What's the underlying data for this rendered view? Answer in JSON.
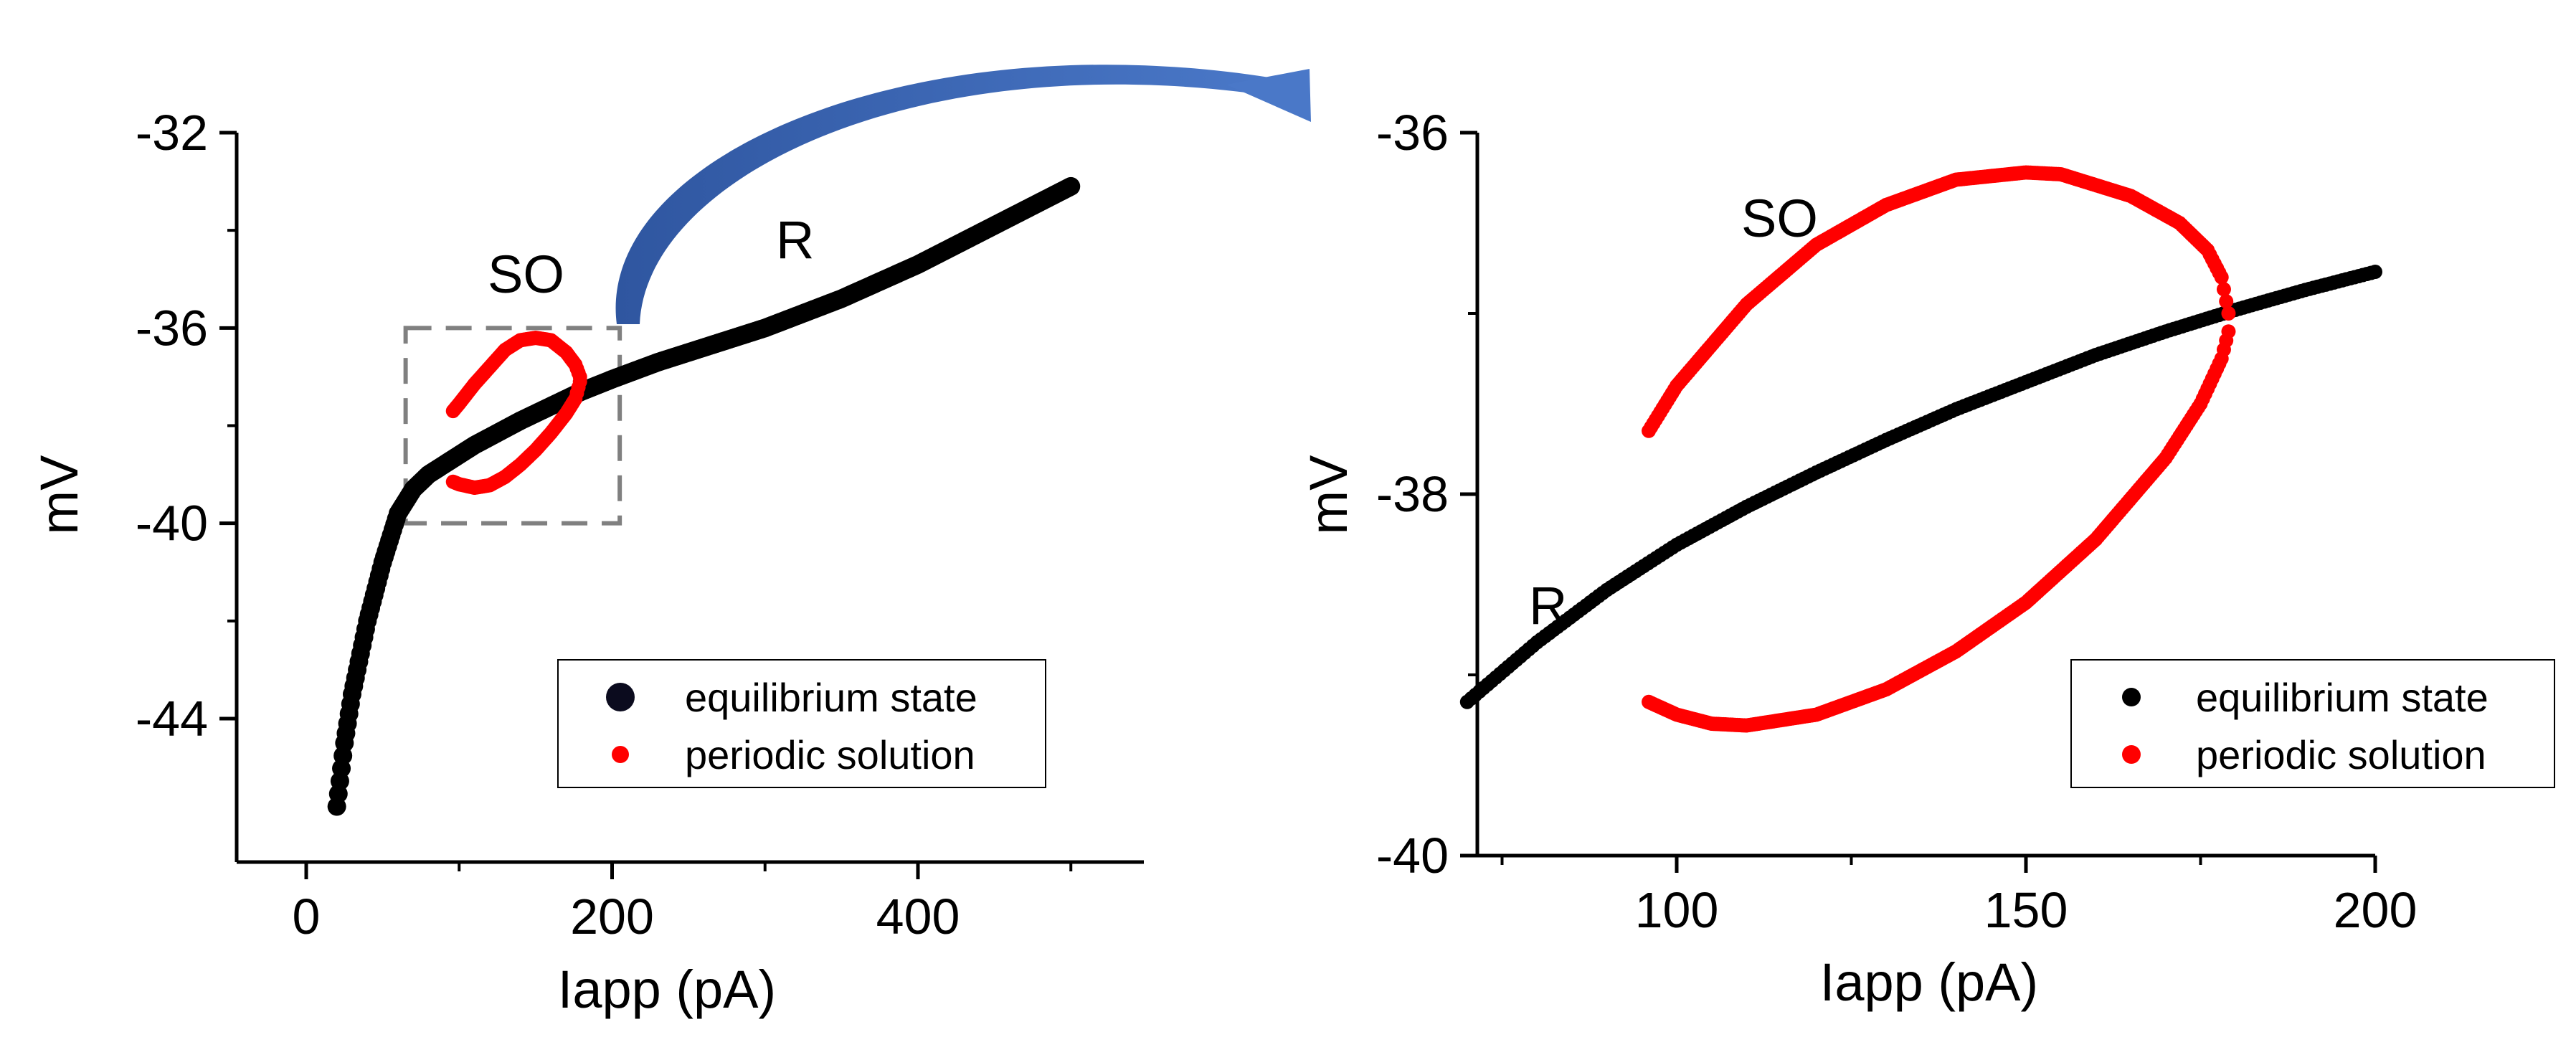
{
  "chart_data": [
    {
      "type": "scatter",
      "title": "",
      "xlabel": "Iapp (pA)",
      "ylabel": "mV",
      "xlim": [
        -45,
        550
      ],
      "ylim": [
        -47,
        -32
      ],
      "xticks": [
        0,
        200,
        400
      ],
      "yticks": [
        -32,
        -36,
        -40,
        -44
      ],
      "xtick_labels": [
        "0",
        "200",
        "400"
      ],
      "ytick_labels": [
        "-32",
        "-36",
        "-40",
        "-44"
      ],
      "grid": false,
      "legend_position": "bottom-right",
      "annotations": [
        "SO",
        "R"
      ],
      "inset_box": {
        "xlim": [
          65,
          205
        ],
        "ylim": [
          -40,
          -36
        ]
      },
      "series": [
        {
          "name": "equilibrium state",
          "color": "#000000",
          "x": [
            20,
            25,
            30,
            40,
            50,
            60,
            70,
            80,
            90,
            100,
            110,
            125,
            140,
            160,
            180,
            200,
            230,
            260,
            300,
            350,
            400,
            450,
            500
          ],
          "y": [
            -45.8,
            -44.5,
            -43.5,
            -42.0,
            -40.8,
            -39.8,
            -39.3,
            -39.0,
            -38.8,
            -38.6,
            -38.4,
            -38.15,
            -37.9,
            -37.6,
            -37.3,
            -37.05,
            -36.7,
            -36.4,
            -36.0,
            -35.4,
            -34.7,
            -33.9,
            -33.1
          ]
        },
        {
          "name": "periodic solution",
          "color": "#ff0000",
          "x": [
            96,
            100,
            110,
            120,
            130,
            140,
            150,
            160,
            170,
            176,
            179,
            179,
            176,
            170,
            160,
            150,
            140,
            130,
            120,
            110,
            100,
            96
          ],
          "y": [
            -39.15,
            -39.2,
            -39.27,
            -39.22,
            -39.05,
            -38.8,
            -38.5,
            -38.15,
            -37.75,
            -37.45,
            -37.1,
            -37.0,
            -36.75,
            -36.5,
            -36.25,
            -36.2,
            -36.25,
            -36.45,
            -36.8,
            -37.15,
            -37.55,
            -37.7
          ]
        }
      ]
    },
    {
      "type": "scatter",
      "title": "",
      "xlabel": "Iapp (pA)",
      "ylabel": "mV",
      "xlim": [
        70,
        200
      ],
      "ylim": [
        -40,
        -36
      ],
      "xticks": [
        100,
        150,
        200
      ],
      "yticks": [
        -36,
        -38,
        -40
      ],
      "xtick_labels": [
        "100",
        "150",
        "200"
      ],
      "ytick_labels": [
        "-36",
        "-38",
        "-40"
      ],
      "grid": false,
      "legend_position": "bottom-right",
      "annotations": [
        "SO",
        "R"
      ],
      "series": [
        {
          "name": "equilibrium state",
          "color": "#000000",
          "x": [
            70,
            80,
            90,
            100,
            110,
            120,
            130,
            140,
            150,
            160,
            170,
            180,
            190,
            200
          ],
          "y": [
            -39.15,
            -38.82,
            -38.53,
            -38.28,
            -38.07,
            -37.88,
            -37.7,
            -37.53,
            -37.38,
            -37.23,
            -37.1,
            -36.98,
            -36.87,
            -36.77
          ]
        },
        {
          "name": "periodic solution",
          "color": "#ff0000",
          "x": [
            96,
            100,
            105,
            110,
            120,
            130,
            140,
            150,
            160,
            170,
            175,
            178,
            179,
            179,
            178,
            176,
            172,
            165,
            155,
            150,
            140,
            130,
            120,
            110,
            100,
            96
          ],
          "y": [
            -39.15,
            -39.22,
            -39.27,
            -39.28,
            -39.22,
            -39.08,
            -38.87,
            -38.6,
            -38.25,
            -37.8,
            -37.5,
            -37.25,
            -37.1,
            -37.0,
            -36.8,
            -36.65,
            -36.5,
            -36.35,
            -36.23,
            -36.22,
            -36.26,
            -36.4,
            -36.62,
            -36.95,
            -37.4,
            -37.65
          ]
        }
      ]
    }
  ]
}
